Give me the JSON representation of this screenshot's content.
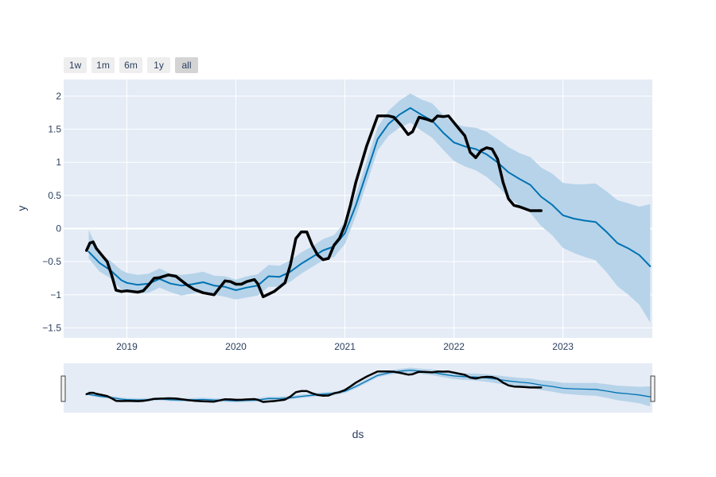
{
  "range_selector": {
    "buttons": [
      {
        "label": "1w",
        "active": false
      },
      {
        "label": "1m",
        "active": false
      },
      {
        "label": "6m",
        "active": false
      },
      {
        "label": "1y",
        "active": false
      },
      {
        "label": "all",
        "active": true
      }
    ]
  },
  "colors": {
    "plot_bg": "#e5ecf6",
    "grid": "#ffffff",
    "band": "#b6d3e9",
    "forecast": "#0072b2",
    "actual": "#000000",
    "text": "#2a3f5f"
  },
  "chart_data": {
    "type": "line",
    "xlabel": "ds",
    "ylabel": "y",
    "xlim": [
      2018.42,
      2023.82
    ],
    "ylim": [
      -1.65,
      2.25
    ],
    "x_ticks": [
      {
        "value": 2019,
        "label": "2019"
      },
      {
        "value": 2020,
        "label": "2020"
      },
      {
        "value": 2021,
        "label": "2021"
      },
      {
        "value": 2022,
        "label": "2022"
      },
      {
        "value": 2023,
        "label": "2023"
      }
    ],
    "y_ticks": [
      {
        "value": 2,
        "label": "2"
      },
      {
        "value": 1.5,
        "label": "1.5"
      },
      {
        "value": 1,
        "label": "1"
      },
      {
        "value": 0.5,
        "label": "0.5"
      },
      {
        "value": 0,
        "label": "0"
      },
      {
        "value": -0.5,
        "label": "−0.5"
      },
      {
        "value": -1,
        "label": "−1"
      },
      {
        "value": -1.5,
        "label": "−1.5"
      }
    ],
    "grid": true,
    "series": [
      {
        "kind": "forecast",
        "x": [
          2018.65,
          2018.75,
          2018.85,
          2018.95,
          2019.0,
          2019.1,
          2019.2,
          2019.3,
          2019.4,
          2019.5,
          2019.6,
          2019.7,
          2019.8,
          2019.9,
          2020.0,
          2020.1,
          2020.2,
          2020.3,
          2020.4,
          2020.5,
          2020.6,
          2020.7,
          2020.8,
          2020.9,
          2021.0,
          2021.1,
          2021.2,
          2021.3,
          2021.4,
          2021.5,
          2021.6,
          2021.7,
          2021.8,
          2021.9,
          2022.0,
          2022.1,
          2022.2,
          2022.3,
          2022.4,
          2022.5,
          2022.6,
          2022.7,
          2022.8,
          2022.9,
          2023.0,
          2023.1,
          2023.2,
          2023.3,
          2023.4,
          2023.5,
          2023.6,
          2023.7,
          2023.8
        ],
        "y": [
          -0.35,
          -0.52,
          -0.63,
          -0.78,
          -0.82,
          -0.85,
          -0.83,
          -0.76,
          -0.83,
          -0.86,
          -0.84,
          -0.81,
          -0.86,
          -0.88,
          -0.93,
          -0.89,
          -0.86,
          -0.72,
          -0.73,
          -0.65,
          -0.53,
          -0.43,
          -0.33,
          -0.27,
          -0.07,
          0.35,
          0.85,
          1.35,
          1.58,
          1.72,
          1.82,
          1.72,
          1.63,
          1.45,
          1.3,
          1.24,
          1.2,
          1.12,
          1.0,
          0.85,
          0.75,
          0.66,
          0.48,
          0.36,
          0.2,
          0.15,
          0.12,
          0.1,
          -0.05,
          -0.22,
          -0.3,
          -0.4,
          -0.57
        ],
        "lower": [
          -0.45,
          -0.65,
          -0.75,
          -0.92,
          -0.96,
          -0.98,
          -0.97,
          -0.89,
          -0.96,
          -1.01,
          -0.98,
          -0.96,
          -1.0,
          -1.03,
          -1.07,
          -1.04,
          -1.01,
          -0.88,
          -0.88,
          -0.8,
          -0.68,
          -0.58,
          -0.48,
          -0.43,
          -0.23,
          0.19,
          0.68,
          1.18,
          1.4,
          1.52,
          1.6,
          1.48,
          1.37,
          1.19,
          1.02,
          0.94,
          0.88,
          0.78,
          0.64,
          0.47,
          0.35,
          0.24,
          0.04,
          -0.1,
          -0.29,
          -0.37,
          -0.43,
          -0.48,
          -0.66,
          -0.87,
          -1.0,
          -1.15,
          -1.42
        ],
        "upper": [
          -0.02,
          -0.37,
          -0.49,
          -0.63,
          -0.67,
          -0.7,
          -0.68,
          -0.6,
          -0.68,
          -0.7,
          -0.68,
          -0.65,
          -0.71,
          -0.72,
          -0.77,
          -0.72,
          -0.69,
          -0.55,
          -0.56,
          -0.48,
          -0.36,
          -0.27,
          -0.16,
          -0.1,
          0.1,
          0.52,
          1.03,
          1.53,
          1.78,
          1.93,
          2.04,
          1.95,
          1.89,
          1.72,
          1.58,
          1.54,
          1.52,
          1.46,
          1.35,
          1.23,
          1.14,
          1.08,
          0.92,
          0.83,
          0.69,
          0.67,
          0.67,
          0.68,
          0.56,
          0.43,
          0.38,
          0.33,
          0.37
        ]
      },
      {
        "kind": "actual",
        "x": [
          2018.63,
          2018.66,
          2018.69,
          2018.72,
          2018.76,
          2018.82,
          2018.86,
          2018.9,
          2018.95,
          2019.0,
          2019.1,
          2019.15,
          2019.2,
          2019.25,
          2019.3,
          2019.38,
          2019.45,
          2019.55,
          2019.62,
          2019.7,
          2019.8,
          2019.9,
          2019.95,
          2020.0,
          2020.05,
          2020.1,
          2020.17,
          2020.2,
          2020.25,
          2020.3,
          2020.35,
          2020.45,
          2020.5,
          2020.55,
          2020.6,
          2020.65,
          2020.7,
          2020.75,
          2020.8,
          2020.85,
          2020.9,
          2020.95,
          2021.0,
          2021.05,
          2021.1,
          2021.2,
          2021.3,
          2021.4,
          2021.45,
          2021.52,
          2021.58,
          2021.62,
          2021.68,
          2021.75,
          2021.8,
          2021.85,
          2021.9,
          2021.95,
          2022.0,
          2022.05,
          2022.1,
          2022.15,
          2022.2,
          2022.25,
          2022.3,
          2022.35,
          2022.4,
          2022.45,
          2022.5,
          2022.55,
          2022.6,
          2022.65,
          2022.7,
          2022.75,
          2022.8
        ],
        "y": [
          -0.33,
          -0.22,
          -0.2,
          -0.3,
          -0.38,
          -0.5,
          -0.7,
          -0.93,
          -0.95,
          -0.94,
          -0.96,
          -0.94,
          -0.85,
          -0.75,
          -0.74,
          -0.7,
          -0.72,
          -0.85,
          -0.92,
          -0.97,
          -1.0,
          -0.79,
          -0.8,
          -0.84,
          -0.84,
          -0.8,
          -0.77,
          -0.83,
          -1.03,
          -0.99,
          -0.95,
          -0.82,
          -0.55,
          -0.15,
          -0.05,
          -0.05,
          -0.25,
          -0.4,
          -0.47,
          -0.45,
          -0.25,
          -0.15,
          0.05,
          0.35,
          0.7,
          1.25,
          1.7,
          1.7,
          1.68,
          1.55,
          1.42,
          1.46,
          1.68,
          1.65,
          1.62,
          1.7,
          1.69,
          1.7,
          1.6,
          1.5,
          1.4,
          1.15,
          1.07,
          1.18,
          1.22,
          1.2,
          1.05,
          0.7,
          0.45,
          0.35,
          0.33,
          0.3,
          0.27,
          0.27,
          0.27
        ]
      }
    ]
  }
}
